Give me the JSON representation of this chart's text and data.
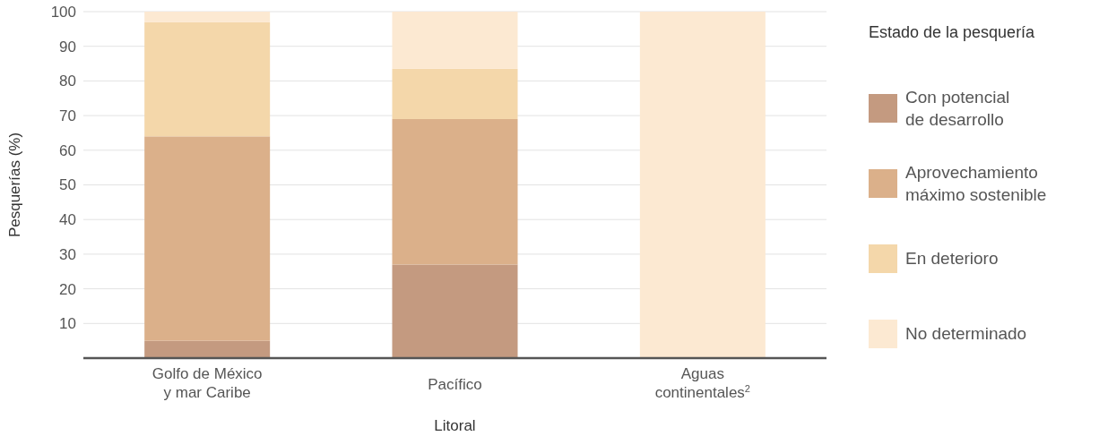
{
  "chart_data": {
    "type": "bar",
    "stacked": true,
    "xlabel": "Litoral",
    "ylabel": "Pesquerías (%)",
    "legend_title": "Estado de la pesquería",
    "legend": "right",
    "grid": "y",
    "categories": [
      "Golfo de México\ny mar Caribe",
      "Pacífico",
      "Aguas\ncontinentales$^{2}$"
    ],
    "ylim": [
      0,
      100
    ],
    "yticks": [
      10,
      20,
      30,
      40,
      50,
      60,
      70,
      80,
      90,
      100
    ],
    "series": [
      {
        "name": "Con potencial\nde desarrollo",
        "color": "#c49a80",
        "values": [
          5,
          27,
          0
        ]
      },
      {
        "name": "Aprovechamiento\nmáximo sostenible",
        "color": "#dbb08a",
        "values": [
          59,
          42,
          0
        ]
      },
      {
        "name": "En deterioro",
        "color": "#f4d7aa",
        "values": [
          33,
          14.5,
          0
        ]
      },
      {
        "name": "No determinado",
        "color": "#fce9d2",
        "values": [
          3,
          16.5,
          100
        ]
      }
    ]
  }
}
